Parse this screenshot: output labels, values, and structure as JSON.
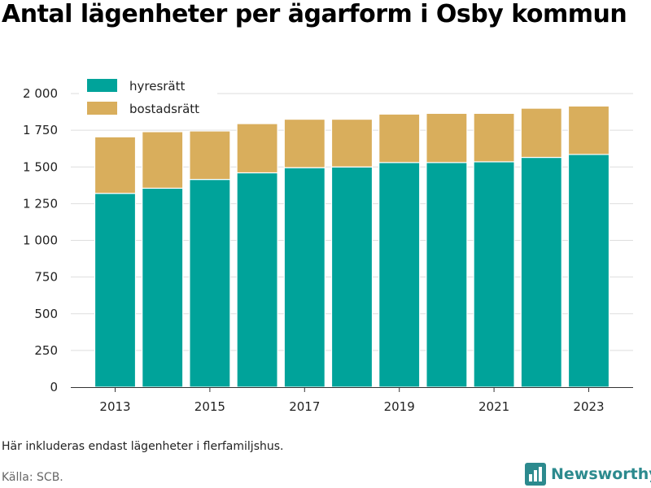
{
  "title": "Antal lägenheter per ägarform i Osby kommun",
  "note": "Här inkluderas endast lägenheter i flerfamiljshus.",
  "source": "Källa: SCB.",
  "brand": {
    "name": "Newsworthy",
    "icon": "bar-chart-logo-icon",
    "color": "#2c8a8e"
  },
  "chart_data": {
    "type": "bar",
    "stacked": true,
    "categories": [
      "2013",
      "2014",
      "2015",
      "2016",
      "2017",
      "2018",
      "2019",
      "2020",
      "2021",
      "2022",
      "2023"
    ],
    "x_tick_labels": [
      "2013",
      "2015",
      "2017",
      "2019",
      "2021",
      "2023"
    ],
    "series": [
      {
        "name": "hyresrätt",
        "color": "#00a39a",
        "values": [
          1320,
          1355,
          1415,
          1460,
          1495,
          1500,
          1530,
          1530,
          1535,
          1565,
          1585
        ]
      },
      {
        "name": "bostadsrätt",
        "color": "#d9ae5c",
        "values": [
          385,
          385,
          330,
          335,
          330,
          325,
          330,
          335,
          330,
          335,
          330
        ]
      }
    ],
    "ylim": [
      0,
      2000
    ],
    "y_ticks": [
      0,
      250,
      500,
      750,
      1000,
      1250,
      1500,
      1750,
      2000
    ],
    "y_tick_labels": [
      "0",
      "250",
      "500",
      "750",
      "1 000",
      "1 250",
      "1 500",
      "1 750",
      "2 000"
    ],
    "grid": true,
    "legend_position": "top-left"
  }
}
